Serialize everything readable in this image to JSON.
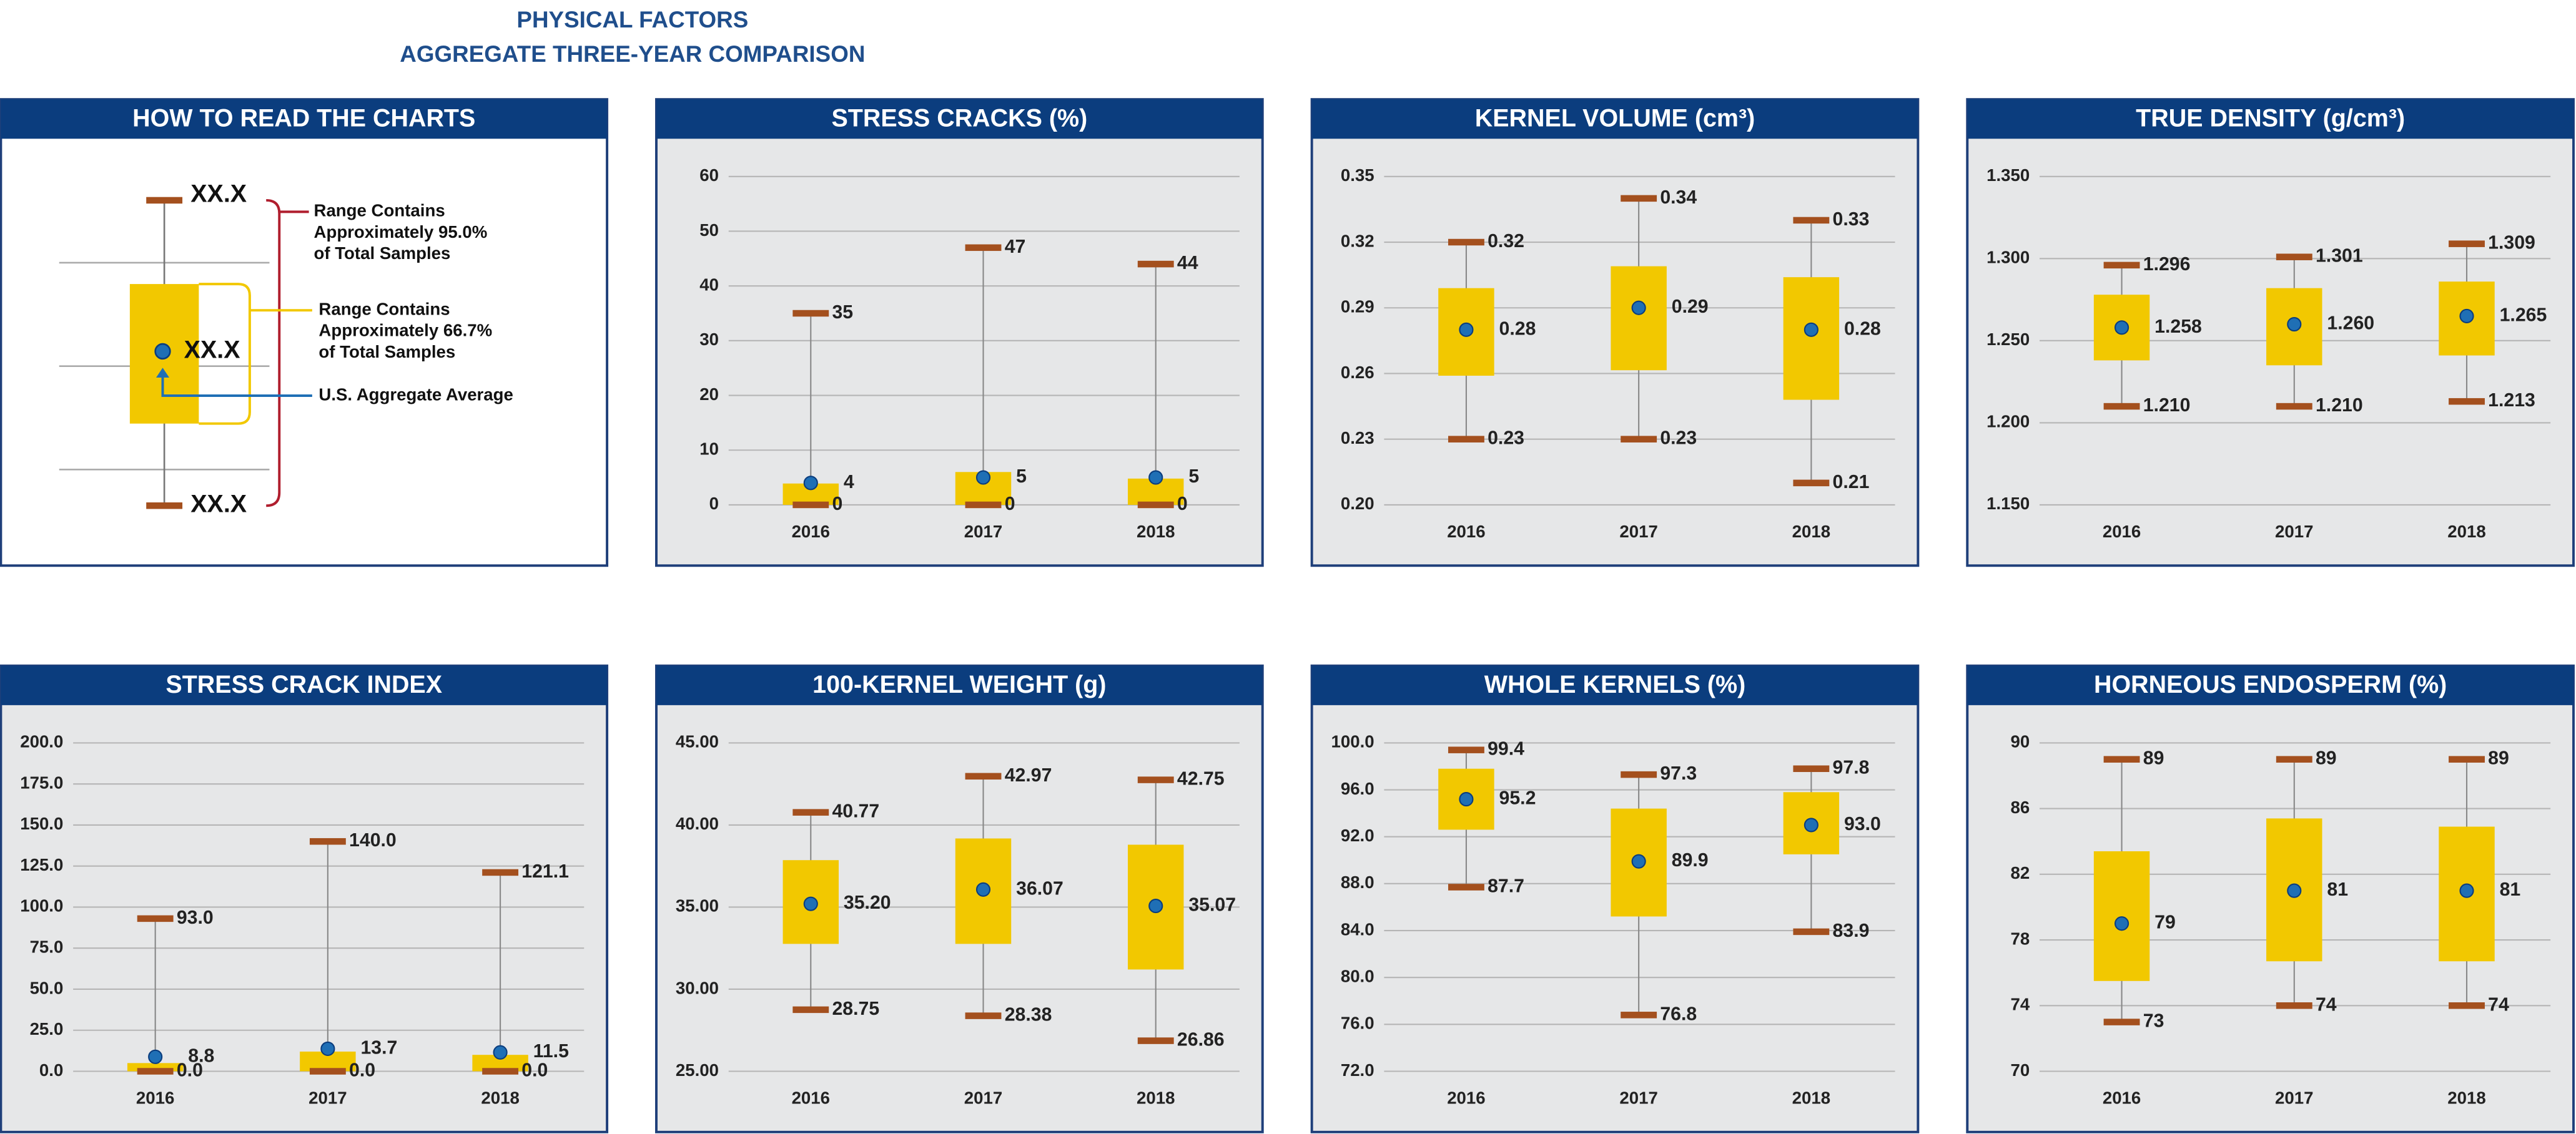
{
  "header": {
    "lines": [
      "PHYSICAL FACTORS",
      "AGGREGATE THREE-YEAR COMPARISON"
    ]
  },
  "guide": {
    "title": "HOW TO READ THE CHARTS",
    "max_label": "XX.X",
    "mean_label": "XX.X",
    "min_label": "XX.X",
    "range_95": [
      "Range Contains",
      "Approximately 95.0%",
      "of Total Samples"
    ],
    "range_667": [
      "Range Contains",
      "Approximately 66.7%",
      "of Total Samples"
    ],
    "average": "U.S. Aggregate Average"
  },
  "chart_data": [
    {
      "type": "box",
      "title": "STRESS CRACKS (%)",
      "categories": [
        "2016",
        "2017",
        "2018"
      ],
      "ylim": [
        0,
        60
      ],
      "yticks": [
        0,
        10,
        20,
        30,
        40,
        50,
        60
      ],
      "grid": true,
      "max": {
        "values": [
          35,
          47,
          44
        ]
      },
      "box_high": {
        "values": [
          3.9,
          6.0,
          4.8
        ]
      },
      "mean": {
        "values": [
          4,
          5,
          5
        ]
      },
      "box_low": {
        "values": [
          0,
          0,
          0
        ]
      },
      "min": {
        "values": [
          0,
          0,
          0
        ]
      }
    },
    {
      "type": "box",
      "title": "KERNEL VOLUME (cm³)",
      "categories": [
        "2016",
        "2017",
        "2018"
      ],
      "ylim": [
        0.2,
        0.35
      ],
      "yticks": [
        {
          "value": 0.2,
          "label": "0.20"
        },
        0.23,
        0.26,
        0.29,
        0.32,
        0.35
      ],
      "grid": true,
      "max": {
        "values": [
          0.32,
          0.34,
          0.33
        ]
      },
      "box_high": {
        "values": [
          0.299,
          0.309,
          0.304
        ]
      },
      "mean": {
        "values": [
          0.28,
          0.29,
          0.28
        ]
      },
      "box_low": {
        "values": [
          0.259,
          0.2615,
          0.248
        ]
      },
      "min": {
        "values": [
          0.23,
          0.23,
          0.21
        ]
      }
    },
    {
      "type": "box",
      "title": "TRUE DENSITY (g/cm³)",
      "categories": [
        "2016",
        "2017",
        "2018"
      ],
      "ylim": [
        1.15,
        1.35
      ],
      "yticks": [
        {
          "value": 1.15,
          "label": "1.150"
        },
        {
          "value": 1.2,
          "label": "1.200"
        },
        {
          "value": 1.25,
          "label": "1.250"
        },
        {
          "value": 1.3,
          "label": "1.300"
        },
        {
          "value": 1.35,
          "label": "1.350"
        }
      ],
      "grid": true,
      "max": {
        "values": [
          1.296,
          1.301,
          1.309
        ]
      },
      "box_high": {
        "values": [
          1.278,
          1.282,
          1.286
        ]
      },
      "mean": {
        "values": [
          1.258,
          1.26,
          1.265
        ],
        "value_labels": [
          "1.258",
          "1.260",
          "1.265"
        ]
      },
      "box_low": {
        "values": [
          1.238,
          1.235,
          1.241
        ]
      },
      "min": {
        "values": [
          1.21,
          1.21,
          1.213
        ],
        "value_labels": [
          "1.210",
          "1.210",
          "1.213"
        ]
      }
    },
    {
      "type": "box",
      "title": "STRESS CRACK INDEX",
      "categories": [
        "2016",
        "2017",
        "2018"
      ],
      "ylim": [
        0,
        200
      ],
      "yticks": [
        {
          "value": 0,
          "label": "0.0"
        },
        {
          "value": 25,
          "label": "25.0"
        },
        {
          "value": 50,
          "label": "50.0"
        },
        {
          "value": 75,
          "label": "75.0"
        },
        {
          "value": 100,
          "label": "100.0"
        },
        {
          "value": 125,
          "label": "125.0"
        },
        {
          "value": 150,
          "label": "150.0"
        },
        {
          "value": 175,
          "label": "175.0"
        },
        {
          "value": 200,
          "label": "200.0"
        }
      ],
      "grid": true,
      "max": {
        "values": [
          93,
          140,
          121.1
        ],
        "value_labels": [
          "93.0",
          "140.0",
          "121.1"
        ]
      },
      "box_high": {
        "values": [
          5,
          12,
          10
        ]
      },
      "mean": {
        "values": [
          8.8,
          13.7,
          11.5
        ]
      },
      "box_low": {
        "values": [
          0,
          0,
          0
        ]
      },
      "min": {
        "values": [
          0,
          0,
          0
        ],
        "value_labels": [
          "0.0",
          "0.0",
          "0.0"
        ]
      }
    },
    {
      "type": "box",
      "title": "100-KERNEL WEIGHT (g)",
      "categories": [
        "2016",
        "2017",
        "2018"
      ],
      "ylim": [
        25,
        45
      ],
      "yticks": [
        {
          "value": 25,
          "label": "25.00"
        },
        {
          "value": 30,
          "label": "30.00"
        },
        {
          "value": 35,
          "label": "35.00"
        },
        {
          "value": 40,
          "label": "40.00"
        },
        {
          "value": 45,
          "label": "45.00"
        }
      ],
      "grid": true,
      "max": {
        "values": [
          40.77,
          42.97,
          42.75
        ]
      },
      "box_high": {
        "values": [
          37.86,
          39.18,
          38.8
        ]
      },
      "mean": {
        "values": [
          35.2,
          36.07,
          35.07
        ],
        "value_labels": [
          "35.20",
          "36.07",
          "35.07"
        ]
      },
      "box_low": {
        "values": [
          32.76,
          32.76,
          31.2
        ]
      },
      "min": {
        "values": [
          28.75,
          28.38,
          26.86
        ]
      }
    },
    {
      "type": "box",
      "title": "WHOLE KERNELS (%)",
      "categories": [
        "2016",
        "2017",
        "2018"
      ],
      "ylim": [
        72,
        100
      ],
      "yticks": [
        {
          "value": 72,
          "label": "72.0"
        },
        {
          "value": 76,
          "label": "76.0"
        },
        {
          "value": 80,
          "label": "80.0"
        },
        {
          "value": 84,
          "label": "84.0"
        },
        {
          "value": 88,
          "label": "88.0"
        },
        {
          "value": 92,
          "label": "92.0"
        },
        {
          "value": 96,
          "label": "96.0"
        },
        {
          "value": 100,
          "label": "100.0"
        }
      ],
      "grid": true,
      "max": {
        "values": [
          99.4,
          97.3,
          97.8
        ]
      },
      "box_high": {
        "values": [
          97.8,
          94.4,
          95.8
        ]
      },
      "mean": {
        "values": [
          95.2,
          89.9,
          93
        ],
        "value_labels": [
          "95.2",
          "89.9",
          "93.0"
        ]
      },
      "box_low": {
        "values": [
          92.6,
          85.2,
          90.5
        ]
      },
      "min": {
        "values": [
          87.7,
          76.8,
          83.9
        ]
      }
    },
    {
      "type": "box",
      "title": "HORNEOUS ENDOSPERM (%)",
      "categories": [
        "2016",
        "2017",
        "2018"
      ],
      "ylim": [
        70,
        90
      ],
      "yticks": [
        70,
        74,
        78,
        82,
        86,
        90
      ],
      "grid": true,
      "max": {
        "values": [
          89,
          89,
          89
        ]
      },
      "box_high": {
        "values": [
          83.4,
          85.4,
          84.9
        ]
      },
      "mean": {
        "values": [
          79,
          81,
          81
        ]
      },
      "box_low": {
        "values": [
          75.5,
          76.7,
          76.7
        ]
      },
      "min": {
        "values": [
          73,
          74,
          74
        ]
      }
    }
  ]
}
